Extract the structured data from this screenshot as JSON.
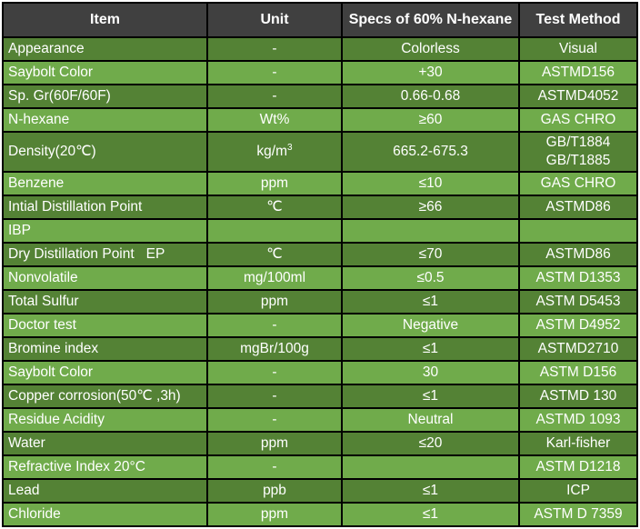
{
  "table": {
    "columns": [
      "Item",
      "Unit",
      "Specs of 60% N-hexane",
      "Test Method"
    ],
    "rows": [
      {
        "item": "Appearance",
        "unit": "-",
        "spec": "Colorless",
        "method": "Visual"
      },
      {
        "item": "Saybolt Color",
        "unit": "-",
        "spec": "+30",
        "method": "ASTMD156"
      },
      {
        "item": "Sp. Gr(60F/60F)",
        "unit": "-",
        "spec": "0.66-0.68",
        "method": "ASTMD4052"
      },
      {
        "item": "N-hexane",
        "unit": "Wt%",
        "spec": "≥60",
        "method": "GAS CHRO"
      },
      {
        "item": "Density(20℃)",
        "unit": "kg/m^3",
        "spec": "665.2-675.3",
        "method": "GB/T1884\nGB/T1885"
      },
      {
        "item": "Benzene",
        "unit": "ppm",
        "spec": "≤10",
        "method": "GAS CHRO"
      },
      {
        "item": "Intial Distillation Point",
        "unit": "℃",
        "spec": "≥66",
        "method": "ASTMD86"
      },
      {
        "item": "IBP",
        "unit": "",
        "spec": "",
        "method": ""
      },
      {
        "item": "Dry Distillation Point   EP",
        "unit": "℃",
        "spec": "≤70",
        "method": "ASTMD86"
      },
      {
        "item": "Nonvolatile",
        "unit": "mg/100ml",
        "spec": "≤0.5",
        "method": "ASTM D1353"
      },
      {
        "item": "Total Sulfur",
        "unit": "ppm",
        "spec": "≤1",
        "method": "ASTM D5453"
      },
      {
        "item": "Doctor test",
        "unit": "-",
        "spec": "Negative",
        "method": "ASTM D4952"
      },
      {
        "item": "Bromine index",
        "unit": "mgBr/100g",
        "spec": "≤1",
        "method": "ASTMD2710"
      },
      {
        "item": "Saybolt Color",
        "unit": "-",
        "spec": "30",
        "method": "ASTM D156"
      },
      {
        "item": "Copper corrosion(50℃ ,3h)",
        "unit": "-",
        "spec": "≤1",
        "method": "ASTMD 130"
      },
      {
        "item": "Residue Acidity",
        "unit": "-",
        "spec": "Neutral",
        "method": "ASTMD 1093"
      },
      {
        "item": "Water",
        "unit": "ppm",
        "spec": "≤20",
        "method": "Karl-fisher"
      },
      {
        "item": "Refractive Index 20°C",
        "unit": "-",
        "spec": "",
        "method": "ASTM D1218"
      },
      {
        "item": "Lead",
        "unit": "ppb",
        "spec": "≤1",
        "method": "ICP"
      },
      {
        "item": "Chloride",
        "unit": "ppm",
        "spec": "≤1",
        "method": "ASTM D 7359"
      }
    ],
    "colors": {
      "header_bg": "#404040",
      "row_dark": "#548235",
      "row_light": "#70AB4B",
      "border": "#000000",
      "text": "#ffffff"
    }
  }
}
